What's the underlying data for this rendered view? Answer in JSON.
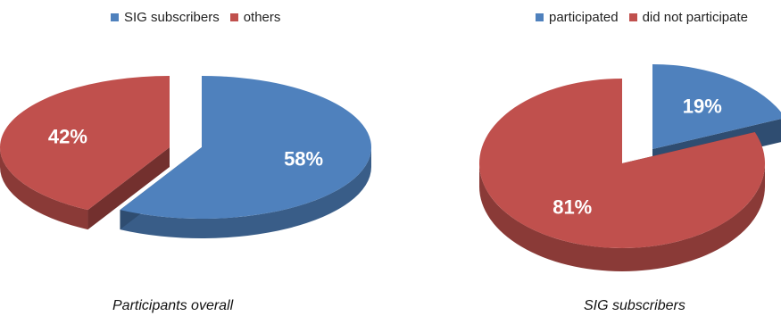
{
  "chart_data": [
    {
      "type": "pie",
      "style": "3d-exploded",
      "title": "Participants overall",
      "legend_position": "top",
      "slices": [
        {
          "label": "SIG subscribers",
          "value": 58,
          "value_label": "58%",
          "color": "#4F81BD"
        },
        {
          "label": "others",
          "value": 42,
          "value_label": "42%",
          "color": "#C0504D"
        }
      ]
    },
    {
      "type": "pie",
      "style": "3d-exploded",
      "title": "SIG subscribers",
      "legend_position": "top",
      "slices": [
        {
          "label": "participated",
          "value": 19,
          "value_label": "19%",
          "color": "#4F81BD"
        },
        {
          "label": "did not participate",
          "value": 81,
          "value_label": "81%",
          "color": "#C0504D"
        }
      ]
    }
  ]
}
